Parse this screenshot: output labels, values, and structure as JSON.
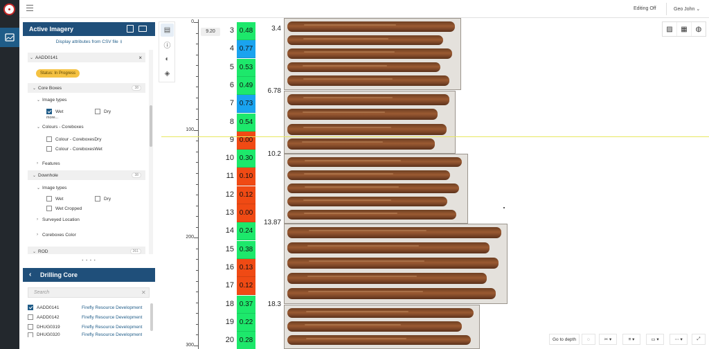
{
  "topbar": {
    "editing_label": "Editing Off",
    "user_name": "Geo John",
    "user_chevron": "⌄"
  },
  "active_imagery": {
    "title": "Active Imagery",
    "csv_link": "Display attributes from CSV file",
    "hole_id": "AADD0141",
    "status": "Status: In Progress",
    "tree": [
      {
        "label": "Core Boxes",
        "count": "38"
      },
      {
        "label": "Image types"
      },
      {
        "label": "Wet",
        "checked": true
      },
      {
        "label": "Dry",
        "checked": false
      },
      {
        "label": "more..."
      },
      {
        "label": "Colours - Coreboxes"
      },
      {
        "label": "Colour - CoreboxesDry",
        "checked": false
      },
      {
        "label": "Colour - CoreboxesWet",
        "checked": false
      },
      {
        "label": "Features"
      },
      {
        "label": "Downhole",
        "count": "38"
      },
      {
        "label": "Image types"
      },
      {
        "label": "Wet",
        "checked": false
      },
      {
        "label": "Dry",
        "checked": false
      },
      {
        "label": "Wet Cropped",
        "checked": false
      },
      {
        "label": "Surveyed Location"
      },
      {
        "label": "Coreboxes Color"
      },
      {
        "label": "ROD",
        "count": "261"
      }
    ]
  },
  "drilling_core": {
    "title": "Drilling Core",
    "search_placeholder": "Search",
    "holes": [
      {
        "id": "AADD0141",
        "company": "Firefly Resource Development",
        "checked": true
      },
      {
        "id": "AADD0142",
        "company": "Firefly Resource Development",
        "checked": false
      },
      {
        "id": "DHUG0319",
        "company": "Firefly Resource Development",
        "checked": false
      },
      {
        "id": "DHUG0320",
        "company": "Firefly Resource Development",
        "checked": false
      }
    ]
  },
  "ruler": {
    "labels": [
      "0",
      "100",
      "200",
      "300"
    ],
    "current_depth": "9.20"
  },
  "property_column": {
    "depths": [
      "3",
      "4",
      "5",
      "6",
      "7",
      "8",
      "9",
      "10",
      "11",
      "12",
      "13",
      "14",
      "15",
      "16",
      "17",
      "18",
      "19",
      "20"
    ],
    "values": [
      "0.48",
      "0.77",
      "0.53",
      "0.49",
      "0.73",
      "0.54",
      "0.00",
      "0.30",
      "0.10",
      "0.12",
      "0.00",
      "0.24",
      "0.38",
      "0.13",
      "0.12",
      "0.37",
      "0.22",
      "0.28"
    ],
    "colors": [
      "#1de86b",
      "#1aa3ef",
      "#1de86b",
      "#1de86b",
      "#1aa3ef",
      "#1de86b",
      "#f04a14",
      "#1de86b",
      "#f04a14",
      "#f04a14",
      "#f04a14",
      "#1de86b",
      "#1de86b",
      "#f04a14",
      "#f04a14",
      "#1de86b",
      "#1de86b",
      "#1de86b"
    ]
  },
  "core_boxes": {
    "depth_labels": [
      "3.4",
      "6.78",
      "10.2",
      "13.87",
      "18.3"
    ]
  },
  "view_tools": [
    "image-icon",
    "grid-icon",
    "globe-icon"
  ],
  "bottom_toolbar": {
    "goto_depth": "Go to depth"
  }
}
